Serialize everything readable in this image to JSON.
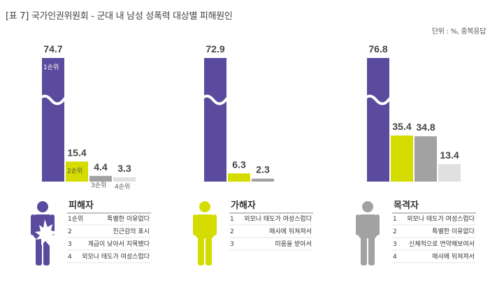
{
  "title": "[표 7] 국가인권위원회 - 군대 내 남성 성폭력 대상별 피해원인",
  "unit_note": "단위 : %, 중복응답",
  "colors": {
    "rank1": "#5b4b9e",
    "rank2": "#d4dc00",
    "rank3": "#a2a2a2",
    "rank4": "#e0e0e0",
    "rule": "#888888"
  },
  "chart_data": {
    "type": "bar",
    "y_axis_broken": true,
    "panels": [
      {
        "person": "피해자",
        "icon": "victim-person-icon",
        "color": "#5b4b9e",
        "values": [
          74.7,
          15.4,
          4.4,
          3.3
        ],
        "value_labels": [
          "74.7",
          "15.4",
          "4.4",
          "3.3"
        ],
        "bar_labels": [
          "1순위",
          "2순위",
          "3순위",
          "4순위"
        ],
        "reasons": [
          {
            "rank": "1순위",
            "text": "특별한 이유없다"
          },
          {
            "rank": "2",
            "text": "친근감의 표시"
          },
          {
            "rank": "3",
            "text": "계급이 낮아서 지목됐다"
          },
          {
            "rank": "4",
            "text": "외모나 태도가 여성스럽다"
          }
        ]
      },
      {
        "person": "가해자",
        "icon": "perpetrator-person-icon",
        "color": "#d4dc00",
        "values": [
          72.9,
          6.3,
          2.3
        ],
        "value_labels": [
          "72.9",
          "6.3",
          "2.3"
        ],
        "bar_labels": [],
        "reasons": [
          {
            "rank": "1",
            "text": "외모나 태도가 여성스럽다"
          },
          {
            "rank": "2",
            "text": "매사에 뒤쳐져서"
          },
          {
            "rank": "3",
            "text": "미움을 받아서"
          }
        ]
      },
      {
        "person": "목격자",
        "icon": "witness-person-icon",
        "color": "#a2a2a2",
        "values": [
          76.8,
          35.4,
          34.8,
          13.4
        ],
        "value_labels": [
          "76.8",
          "35.4",
          "34.8",
          "13.4"
        ],
        "bar_labels": [],
        "reasons": [
          {
            "rank": "1",
            "text": "외모나 태도가 여성스럽다"
          },
          {
            "rank": "2",
            "text": "특별한 이유없다"
          },
          {
            "rank": "3",
            "text": "신체적으로 연약해보여서"
          },
          {
            "rank": "4",
            "text": "매사에 뒤쳐져서"
          }
        ]
      }
    ]
  }
}
